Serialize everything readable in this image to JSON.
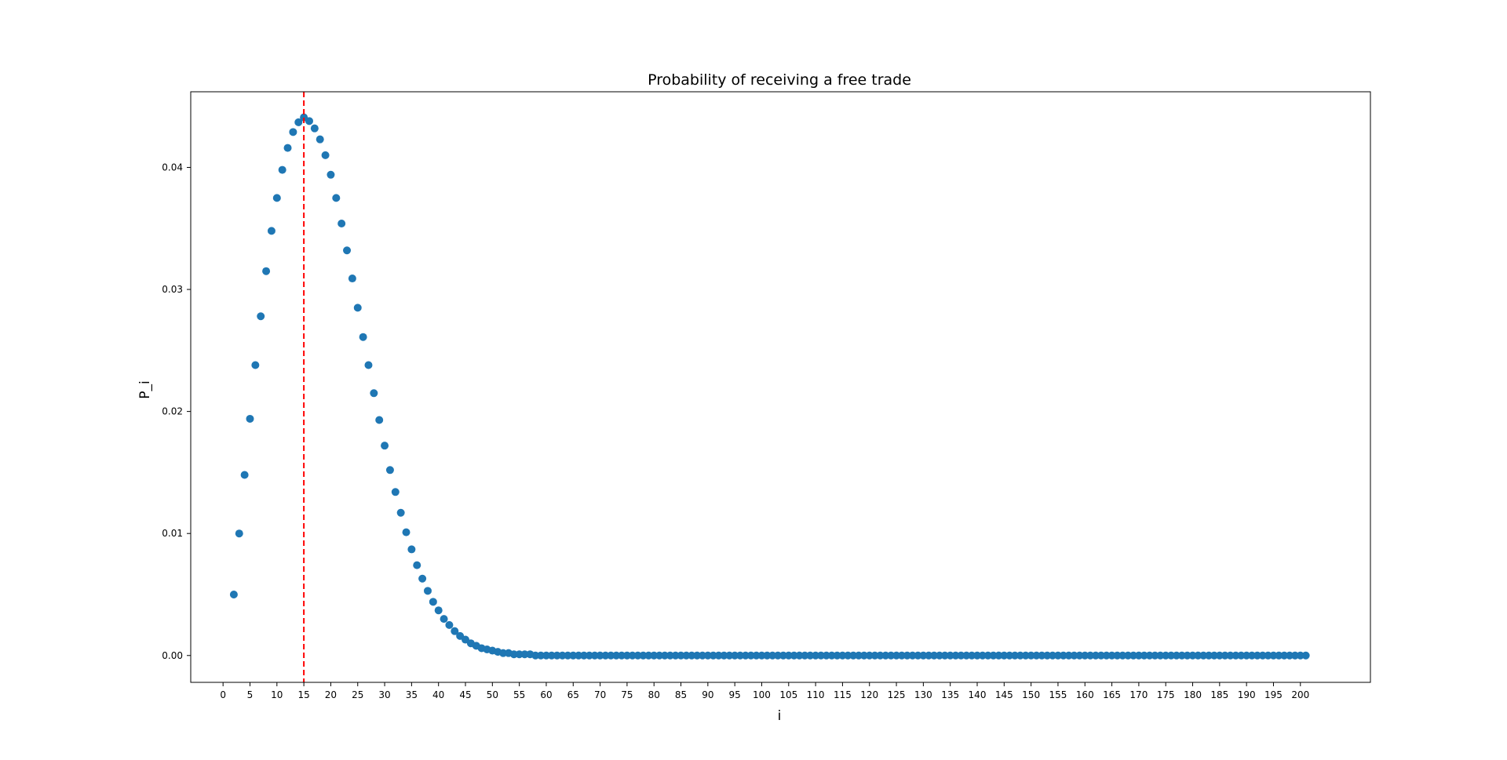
{
  "chart_data": {
    "type": "scatter",
    "title": "Probability of receiving a free trade",
    "xlabel": "i",
    "ylabel": "P_i",
    "xlim": [
      -6,
      213
    ],
    "ylim": [
      -0.0022,
      0.0462
    ],
    "xticks": [
      0,
      5,
      10,
      15,
      20,
      25,
      30,
      35,
      40,
      45,
      50,
      55,
      60,
      65,
      70,
      75,
      80,
      85,
      90,
      95,
      100,
      105,
      110,
      115,
      120,
      125,
      130,
      135,
      140,
      145,
      150,
      155,
      160,
      165,
      170,
      175,
      180,
      185,
      190,
      195,
      200
    ],
    "yticks": [
      0.0,
      0.01,
      0.02,
      0.03,
      0.04
    ],
    "ytick_labels": [
      "0.00",
      "0.01",
      "0.02",
      "0.03",
      "0.04"
    ],
    "grid": false,
    "marker_color": "#1f77b4",
    "reference_line": {
      "x": 15,
      "color": "#ff0000",
      "style": "dashed"
    },
    "series": [
      {
        "x_start": 2,
        "x_end": 201,
        "values_head": [
          0.005,
          0.01,
          0.0148,
          0.0194,
          0.0238,
          0.0278,
          0.0315,
          0.0348,
          0.0375,
          0.0398,
          0.0416,
          0.0429,
          0.0437,
          0.0441,
          0.0438,
          0.0432,
          0.0423,
          0.041,
          0.0394,
          0.0375,
          0.0354,
          0.0332,
          0.0309,
          0.0285,
          0.0261,
          0.0238,
          0.0215,
          0.0193,
          0.0172,
          0.0152,
          0.0134,
          0.0117,
          0.0101,
          0.0087,
          0.0074,
          0.0063,
          0.0053,
          0.0044,
          0.0037,
          0.003,
          0.0025,
          0.002,
          0.0016,
          0.0013,
          0.001,
          0.0008,
          0.0006,
          0.0005,
          0.0004,
          0.0003,
          0.0002,
          0.0002,
          0.0001,
          0.0001,
          0.0001,
          0.0001
        ],
        "tail_value": 0.0
      }
    ]
  }
}
